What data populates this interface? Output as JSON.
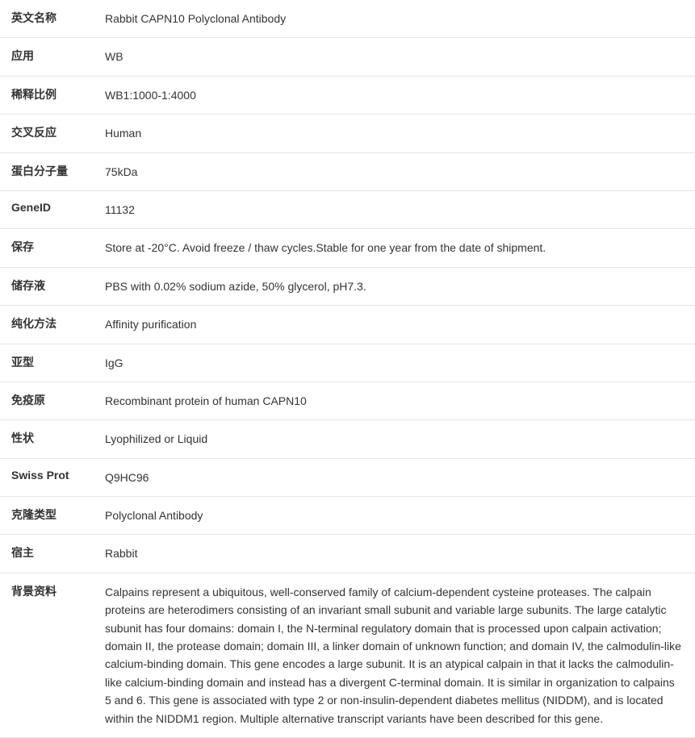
{
  "rows": [
    {
      "label": "英文名称",
      "value": "Rabbit CAPN10 Polyclonal Antibody"
    },
    {
      "label": "应用",
      "value": "WB"
    },
    {
      "label": "稀释比例",
      "value": "WB1:1000-1:4000"
    },
    {
      "label": "交叉反应",
      "value": "Human"
    },
    {
      "label": "蛋白分子量",
      "value": "75kDa"
    },
    {
      "label": "GeneID",
      "value": "11132"
    },
    {
      "label": "保存",
      "value": "Store at -20°C. Avoid freeze / thaw cycles.Stable for one year from the date of shipment."
    },
    {
      "label": "储存液",
      "value": "PBS with 0.02% sodium azide, 50% glycerol, pH7.3."
    },
    {
      "label": "纯化方法",
      "value": "Affinity purification"
    },
    {
      "label": "亚型",
      "value": "IgG"
    },
    {
      "label": "免疫原",
      "value": "Recombinant protein of human CAPN10"
    },
    {
      "label": "性状",
      "value": "Lyophilized or Liquid"
    },
    {
      "label": "Swiss Prot",
      "value": "Q9HC96"
    },
    {
      "label": "克隆类型",
      "value": "Polyclonal Antibody"
    },
    {
      "label": "宿主",
      "value": "Rabbit"
    },
    {
      "label": "背景资料",
      "value": "Calpains represent a ubiquitous, well-conserved family of calcium-dependent cysteine proteases. The calpain proteins are heterodimers consisting of an invariant small subunit and variable large subunits. The large catalytic subunit has four domains: domain I, the N-terminal regulatory domain that is processed upon calpain activation; domain II, the protease domain; domain III, a linker domain of unknown function; and domain IV, the calmodulin-like calcium-binding domain. This gene encodes a large subunit. It is an atypical calpain in that it lacks the calmodulin-like calcium-binding domain and instead has a divergent C-terminal domain. It is similar in organization to calpains 5 and 6. This gene is associated with type 2 or non-insulin-dependent diabetes mellitus (NIDDM), and is located within the NIDDM1 region. Multiple alternative transcript variants have been described for this gene."
    }
  ],
  "styles": {
    "label_color": "#333333",
    "value_color": "#333333",
    "border_color": "#e5e5e5",
    "background_color": "#ffffff",
    "font_size": 14,
    "label_width": 120
  }
}
